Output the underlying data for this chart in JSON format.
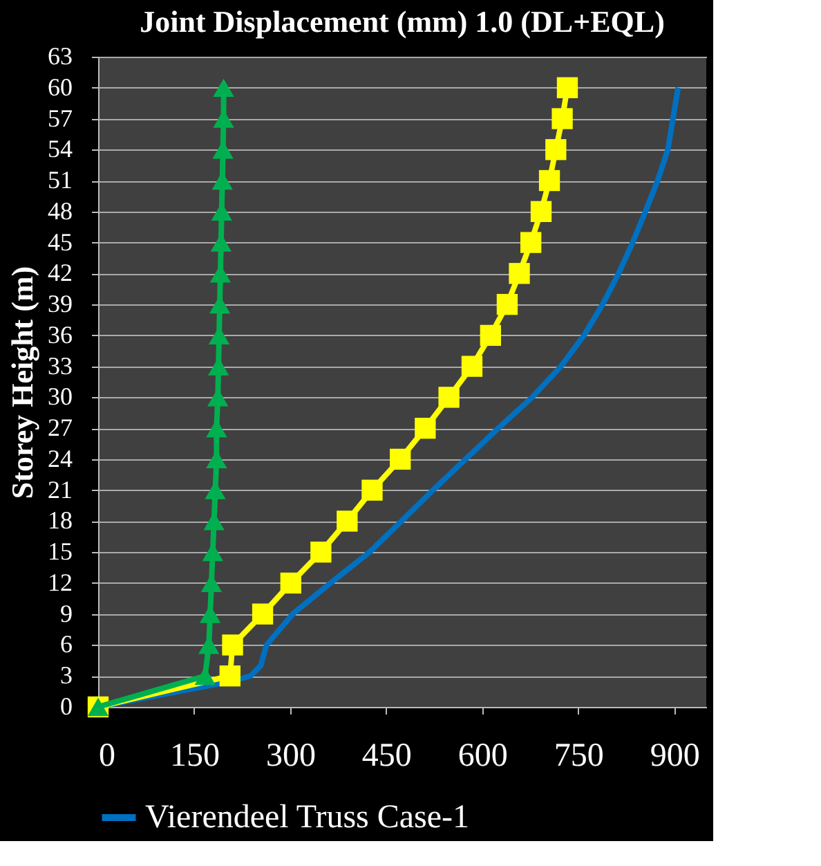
{
  "chart_data": {
    "type": "line",
    "title": "Joint Displacement (mm) 1.0 (DL+EQL)",
    "ylabel": "Storey Height (m)",
    "xlim": [
      0,
      950
    ],
    "xticks": [
      0,
      150,
      300,
      450,
      600,
      750,
      900
    ],
    "ylim": [
      0,
      63
    ],
    "yticks": [
      0,
      3,
      6,
      9,
      12,
      15,
      18,
      21,
      24,
      27,
      30,
      33,
      36,
      39,
      42,
      45,
      48,
      51,
      54,
      57,
      60,
      63
    ],
    "grid": "y",
    "legend": "bottom",
    "series": [
      {
        "name": "Vierendeel Truss Case-1",
        "color": "#0070c0",
        "marker": "none",
        "x": [
          0,
          210,
          238,
          254,
          263,
          304,
          363,
          424,
          474,
          523,
          574,
          625,
          678,
          723,
          759,
          788,
          813,
          835,
          855,
          874,
          890,
          898,
          906
        ],
        "values": [
          0,
          2.5,
          3,
          4,
          6,
          9,
          12,
          15,
          18,
          21,
          24,
          27,
          30,
          33,
          36,
          39,
          42,
          45,
          48,
          51,
          54,
          57,
          60
        ]
      },
      {
        "color": "#ffff00",
        "marker": "square",
        "x": [
          0,
          206,
          210,
          257,
          301,
          348,
          389,
          428,
          472,
          511,
          548,
          584,
          613,
          639,
          658,
          676,
          692,
          705,
          715,
          725,
          733
        ],
        "values": [
          0,
          3,
          6,
          9,
          12,
          15,
          18,
          21,
          24,
          27,
          30,
          33,
          36,
          39,
          42,
          45,
          48,
          51,
          54,
          57,
          60
        ]
      },
      {
        "color": "#00b050",
        "marker": "triangle",
        "x": [
          0,
          167,
          173,
          175,
          177,
          179,
          181,
          183,
          185,
          185,
          187,
          188,
          189,
          190,
          191,
          192,
          193,
          194,
          195,
          196,
          196
        ],
        "values": [
          0,
          3,
          6,
          9,
          12,
          15,
          18,
          21,
          24,
          27,
          30,
          33,
          36,
          39,
          42,
          45,
          48,
          51,
          54,
          57,
          60
        ]
      }
    ]
  }
}
